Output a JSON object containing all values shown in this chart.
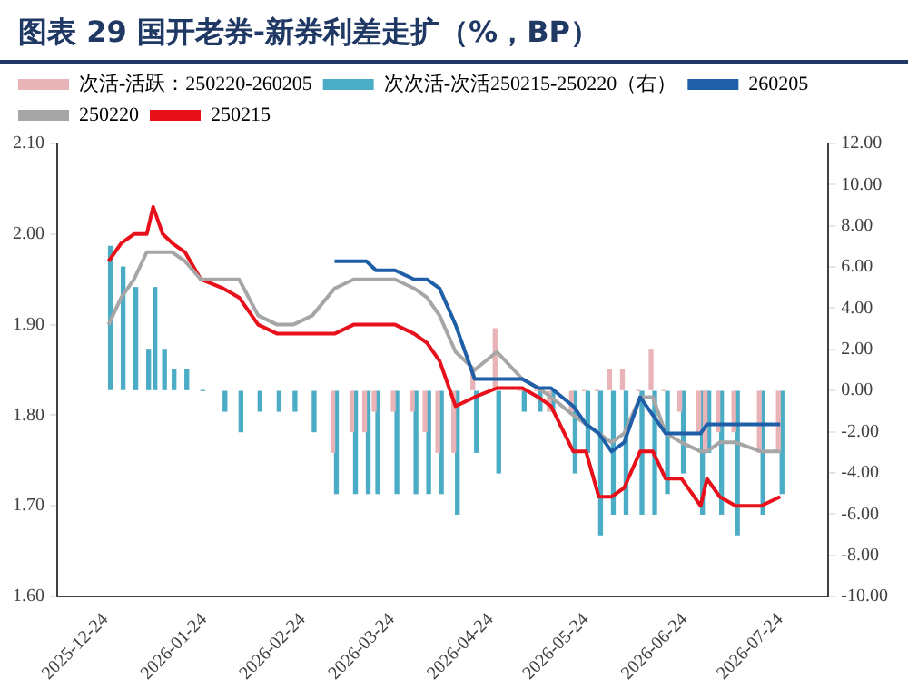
{
  "chart_data": {
    "type": "line",
    "title": "图表 29 国开老券-新券利差走扩（%，BP）",
    "x": [
      "2025-12-25",
      "2025-12-29",
      "2026-01-02",
      "2026-01-06",
      "2026-01-08",
      "2026-01-11",
      "2026-01-14",
      "2026-01-18",
      "2026-01-23",
      "2026-01-30",
      "2026-02-04",
      "2026-02-10",
      "2026-02-16",
      "2026-02-21",
      "2026-02-27",
      "2026-03-06",
      "2026-03-12",
      "2026-03-16",
      "2026-03-19",
      "2026-03-25",
      "2026-03-31",
      "2026-04-04",
      "2026-04-08",
      "2026-04-13",
      "2026-04-19",
      "2026-04-26",
      "2026-05-04",
      "2026-05-09",
      "2026-05-13",
      "2026-05-20",
      "2026-05-24",
      "2026-05-28",
      "2026-06-01",
      "2026-06-05",
      "2026-06-10",
      "2026-06-14",
      "2026-06-18",
      "2026-06-23",
      "2026-06-29",
      "2026-07-01",
      "2026-07-05",
      "2026-07-10",
      "2026-07-18",
      "2026-07-24"
    ],
    "series": [
      {
        "name": "次活-活跃：250220-260205",
        "type": "bar",
        "axis": "y2",
        "color": "#e8b4b8",
        "values": [
          null,
          null,
          null,
          null,
          null,
          null,
          null,
          null,
          null,
          null,
          null,
          null,
          null,
          null,
          null,
          -3,
          -2,
          -2,
          -1,
          -1,
          -1,
          -2,
          -3,
          -3,
          1,
          3,
          0,
          0,
          -1,
          -1,
          0,
          0,
          1,
          1,
          0,
          2,
          0,
          -1,
          -2,
          -3,
          -2,
          -2,
          -3,
          -3
        ]
      },
      {
        "name": "次次活-次活250215-250220（右）",
        "type": "bar",
        "axis": "y2",
        "color": "#4bacc6",
        "values": [
          7,
          6,
          5,
          2,
          5,
          2,
          1,
          1,
          0,
          -1,
          -2,
          -1,
          -1,
          -1,
          -2,
          -5,
          -5,
          -5,
          -5,
          -5,
          -5,
          -5,
          -5,
          -6,
          -3,
          -4,
          -1,
          -1,
          -1,
          -4,
          -3,
          -7,
          -6,
          -6,
          -6,
          -6,
          -5,
          -4,
          -6,
          -3,
          -6,
          -7,
          -6,
          -5
        ]
      },
      {
        "name": "260205",
        "color": "#1f5fa8",
        "values": [
          null,
          null,
          null,
          null,
          null,
          null,
          null,
          null,
          null,
          null,
          null,
          null,
          null,
          null,
          null,
          1.97,
          1.97,
          1.97,
          1.96,
          1.96,
          1.95,
          1.95,
          1.94,
          1.9,
          1.84,
          1.84,
          1.84,
          1.83,
          1.83,
          1.81,
          1.79,
          1.78,
          1.76,
          1.77,
          1.82,
          1.8,
          1.78,
          1.78,
          1.78,
          1.79,
          1.79,
          1.79,
          1.79,
          1.79
        ]
      },
      {
        "name": "250220",
        "color": "#a6a6a6",
        "values": [
          1.9,
          1.93,
          1.95,
          1.98,
          1.98,
          1.98,
          1.98,
          1.97,
          1.95,
          1.95,
          1.95,
          1.91,
          1.9,
          1.9,
          1.91,
          1.94,
          1.95,
          1.95,
          1.95,
          1.95,
          1.94,
          1.93,
          1.91,
          1.87,
          1.85,
          1.87,
          1.84,
          1.83,
          1.82,
          1.8,
          1.79,
          1.78,
          1.77,
          1.78,
          1.82,
          1.82,
          1.78,
          1.77,
          1.76,
          1.76,
          1.77,
          1.77,
          1.76,
          1.76
        ]
      },
      {
        "name": "250215",
        "color": "#e8101a",
        "values": [
          1.97,
          1.99,
          2.0,
          2.0,
          2.03,
          2.0,
          1.99,
          1.98,
          1.95,
          1.94,
          1.93,
          1.9,
          1.89,
          1.89,
          1.89,
          1.89,
          1.9,
          1.9,
          1.9,
          1.9,
          1.89,
          1.88,
          1.86,
          1.81,
          1.82,
          1.83,
          1.83,
          1.82,
          1.81,
          1.76,
          1.76,
          1.71,
          1.71,
          1.72,
          1.76,
          1.76,
          1.73,
          1.73,
          1.7,
          1.73,
          1.71,
          1.7,
          1.7,
          1.71
        ]
      }
    ],
    "xlim": [
      "2025-12-24",
      "2026-07-24"
    ],
    "xticks": [
      "2025-12-24",
      "2026-01-24",
      "2026-02-24",
      "2026-03-24",
      "2026-04-24",
      "2026-05-24",
      "2026-06-24",
      "2026-07-24"
    ],
    "ylim": [
      1.6,
      2.1
    ],
    "yticks": [
      {
        "value": 1.6,
        "label": "1.60"
      },
      {
        "value": 1.7,
        "label": "1.70"
      },
      {
        "value": 1.8,
        "label": "1.80"
      },
      {
        "value": 1.9,
        "label": "1.90"
      },
      {
        "value": 2.0,
        "label": "2.00"
      },
      {
        "value": 2.1,
        "label": "2.10"
      }
    ],
    "y2lim": [
      -10,
      12
    ],
    "y2ticks": [
      {
        "value": -10,
        "label": "-10.00"
      },
      {
        "value": -8,
        "label": "-8.00"
      },
      {
        "value": -6,
        "label": "-6.00"
      },
      {
        "value": -4,
        "label": "-4.00"
      },
      {
        "value": -2,
        "label": "-2.00"
      },
      {
        "value": 0,
        "label": "0.00"
      },
      {
        "value": 2,
        "label": "2.00"
      },
      {
        "value": 4,
        "label": "4.00"
      },
      {
        "value": 6,
        "label": "6.00"
      },
      {
        "value": 8,
        "label": "8.00"
      },
      {
        "value": 10,
        "label": "10.00"
      },
      {
        "value": 12,
        "label": "12.00"
      }
    ],
    "grid": false,
    "legend": "top"
  }
}
